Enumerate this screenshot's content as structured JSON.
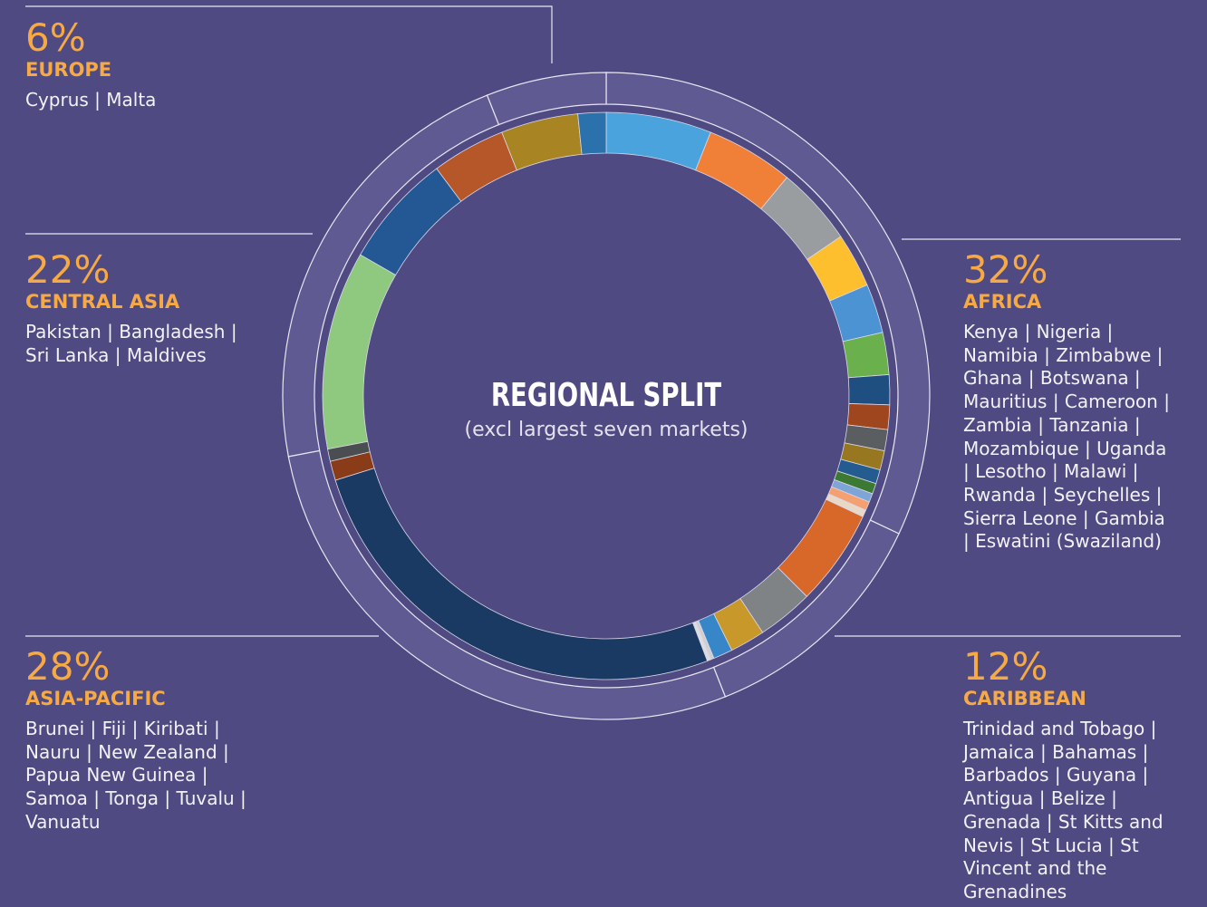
{
  "chart_data": {
    "type": "donut",
    "title": "REGIONAL SPLIT",
    "subtitle": "(excl largest seven markets)",
    "regions": [
      {
        "name": "AFRICA",
        "value": 32,
        "value_label": "32%",
        "lines": [
          "Kenya | Nigeria |",
          "Namibia | Zimbabwe |",
          "Ghana | Botswana |",
          "Mauritius | Cameroon |",
          "Zambia | Tanzania |",
          "Mozambique | Uganda",
          "| Lesotho | Malawi |",
          "Rwanda | Seychelles |",
          "Sierra Leone | Gambia",
          "| Eswatini (Swaziland)"
        ],
        "segments": [
          {
            "color": "#4aa3dc",
            "value": 6
          },
          {
            "color": "#f08038",
            "value": 5
          },
          {
            "color": "#9a9d9f",
            "value": 4.5
          },
          {
            "color": "#fdbf2d",
            "value": 3.1
          },
          {
            "color": "#4b93d3",
            "value": 2.8
          },
          {
            "color": "#6ab04c",
            "value": 2.4
          },
          {
            "color": "#1f4e80",
            "value": 1.7
          },
          {
            "color": "#a0461f",
            "value": 1.4
          },
          {
            "color": "#5a5e60",
            "value": 1.2
          },
          {
            "color": "#977821",
            "value": 1.1
          },
          {
            "color": "#245c8f",
            "value": 0.8
          },
          {
            "color": "#3c7a34",
            "value": 0.6
          },
          {
            "color": "#7fa5d8",
            "value": 0.5
          },
          {
            "color": "#f4a070",
            "value": 0.5
          },
          {
            "color": "#e8d8c8",
            "value": 0.4
          }
        ]
      },
      {
        "name": "CARIBBEAN",
        "value": 12,
        "value_label": "12%",
        "lines": [
          "Trinidad and Tobago |",
          "Jamaica | Bahamas |",
          "Barbados | Guyana |",
          "Antigua | Belize |",
          "Grenada | St Kitts and",
          "Nevis | St Lucia | St",
          "Vincent and the",
          "Grenadines"
        ],
        "segments": [
          {
            "color": "#d8672a",
            "value": 5.5
          },
          {
            "color": "#808385",
            "value": 3.2
          },
          {
            "color": "#c9982a",
            "value": 2
          },
          {
            "color": "#3786c8",
            "value": 1.1
          },
          {
            "color": "#cfcfcf",
            "value": 0.2
          }
        ]
      },
      {
        "name": "ASIA-PACIFIC",
        "value": 28,
        "value_label": "28%",
        "lines": [
          "Brunei | Fiji | Kiribati |",
          "Nauru | New Zealand |",
          "Papua New Guinea |",
          "Samoa | Tonga | Tuvalu |",
          "Vanuatu"
        ],
        "segments": [
          {
            "color": "#dddddd",
            "value": 0.2
          },
          {
            "color": "#1a3a64",
            "value": 26
          },
          {
            "color": "#8a3c18",
            "value": 1.1
          },
          {
            "color": "#4a4e50",
            "value": 0.7
          }
        ]
      },
      {
        "name": "CENTRAL ASIA",
        "value": 22,
        "value_label": "22%",
        "lines": [
          "Pakistan | Bangladesh |",
          "Sri Lanka | Maldives"
        ],
        "segments": [
          {
            "color": "#8ec97f",
            "value": 11.3
          },
          {
            "color": "#245895",
            "value": 6.5
          },
          {
            "color": "#b55728",
            "value": 4.2
          }
        ]
      },
      {
        "name": "EUROPE",
        "value": 6,
        "value_label": "6%",
        "lines": [
          "Cyprus | Malta"
        ],
        "segments": [
          {
            "color": "#a98423",
            "value": 4.4
          },
          {
            "color": "#2b72ad",
            "value": 1.6
          }
        ]
      }
    ]
  }
}
